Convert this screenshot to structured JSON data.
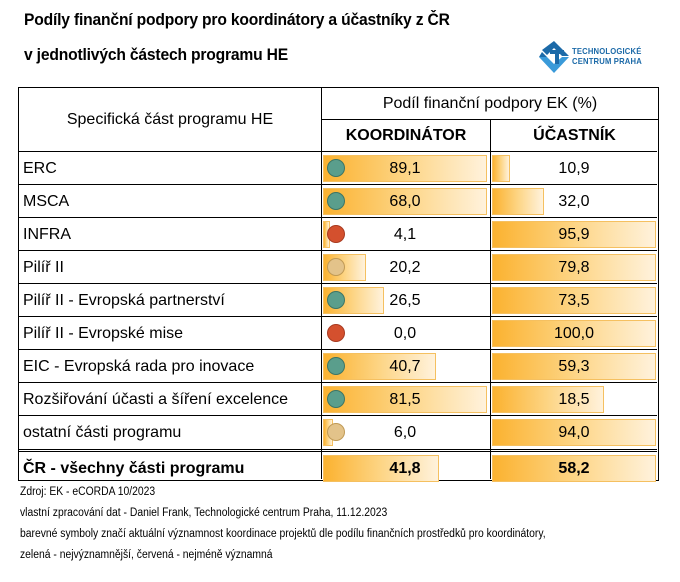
{
  "title": {
    "line1": "Podíly finanční podpory pro koordinátory a účastníky z ČR",
    "line2": "v jednotlivých částech programu HE"
  },
  "logo": {
    "icon": "technologicke-centrum-logo-icon",
    "line1": "TECHNOLOGICKÉ",
    "line2": "CENTRUM PRAHA",
    "color": "#1c6aa8"
  },
  "table": {
    "header_left": "Specifická část programu HE",
    "header_group": "Podíl finanční podpory EK (%)",
    "col_koordinator": "KOORDINÁTOR",
    "col_ucastnik": "ÚČASTNÍK",
    "colors": {
      "green": "#5a9e8c",
      "red": "#d4502e",
      "beige": "#e3c38a",
      "bar": "#fbb230"
    },
    "rows": [
      {
        "label": "ERC",
        "koordinator": "89,1",
        "ucastnik": "10,9",
        "k_fill": 1.0,
        "u_fill": 0.11,
        "symbol": "green"
      },
      {
        "label": "MSCA",
        "koordinator": "68,0",
        "ucastnik": "32,0",
        "k_fill": 1.0,
        "u_fill": 0.32,
        "symbol": "green"
      },
      {
        "label": "INFRA",
        "koordinator": "4,1",
        "ucastnik": "95,9",
        "k_fill": 0.04,
        "u_fill": 1.0,
        "symbol": "red"
      },
      {
        "label": "Pilíř II",
        "koordinator": "20,2",
        "ucastnik": "79,8",
        "k_fill": 0.26,
        "u_fill": 1.0,
        "symbol": "beige"
      },
      {
        "label": "Pilíř II - Evropská partnerství",
        "koordinator": "26,5",
        "ucastnik": "73,5",
        "k_fill": 0.37,
        "u_fill": 1.0,
        "symbol": "green"
      },
      {
        "label": "Pilíř II - Evropské mise",
        "koordinator": "0,0",
        "ucastnik": "100,0",
        "k_fill": 0.0,
        "u_fill": 1.0,
        "symbol": "red"
      },
      {
        "label": "EIC - Evropská rada pro inovace",
        "koordinator": "40,7",
        "ucastnik": "59,3",
        "k_fill": 0.69,
        "u_fill": 1.0,
        "symbol": "green"
      },
      {
        "label": "Rozšiřování účasti a šíření excelence",
        "koordinator": "81,5",
        "ucastnik": "18,5",
        "k_fill": 1.0,
        "u_fill": 0.68,
        "symbol": "green"
      },
      {
        "label": "ostatní části programu",
        "koordinator": "6,0",
        "ucastnik": "94,0",
        "k_fill": 0.06,
        "u_fill": 1.0,
        "symbol": "beige"
      }
    ],
    "total": {
      "label": "ČR - všechny části programu",
      "koordinator": "41,8",
      "ucastnik": "58,2",
      "k_fill": 0.71,
      "u_fill": 1.0
    }
  },
  "footer": {
    "source": "Zdroj: EK - eCORDA 10/2023",
    "author": "vlastní zpracování dat - Daniel Frank, Technologické centrum Praha, 11.12.2023",
    "note1": "barevné symboly značí aktuální významnost koordinace projektů dle podílu finančních prostředků pro koordinátory,",
    "note2": "zelená - nejvýznamnější, červená  - nejméně významná"
  }
}
